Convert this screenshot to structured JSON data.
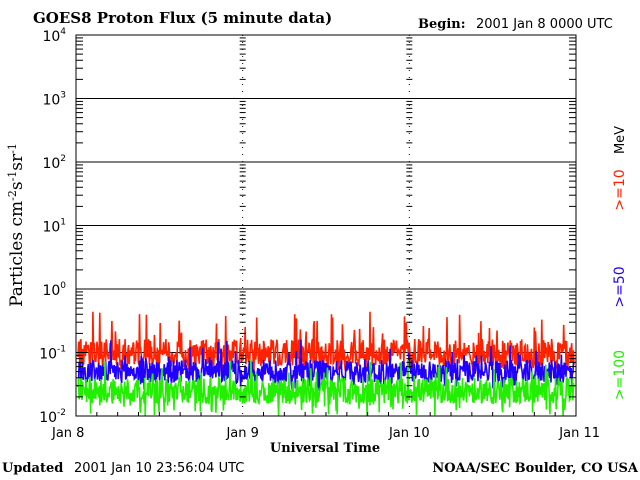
{
  "header": {
    "title": "GOES8 Proton Flux (5 minute data)",
    "begin_label": "Begin:",
    "begin_value": "2001 Jan 8 0000 UTC"
  },
  "footer": {
    "updated_label": "Updated",
    "updated_value": "2001 Jan 10 23:56:04 UTC",
    "credit": "NOAA/SEC Boulder, CO USA"
  },
  "legend": {
    "unit": "MeV",
    "entries": [
      {
        "label": ">=10",
        "color": "#ff2200"
      },
      {
        "label": ">=50",
        "color": "#2200ff"
      },
      {
        "label": ">=100",
        "color": "#22ee00"
      }
    ]
  },
  "chart_data": {
    "type": "line",
    "title": "GOES8 Proton Flux (5 minute data)",
    "xlabel": "Universal Time",
    "ylabel": "Particles cm-2s-1sr-1",
    "y_scale": "log",
    "ylim": [
      0.01,
      10000
    ],
    "x_ticks": [
      "Jan 8",
      "Jan 9",
      "Jan 10",
      "Jan 11"
    ],
    "x_range_days": [
      "2001-01-08",
      "2001-01-11"
    ],
    "y_ticks": [
      {
        "base": "10",
        "exp": "-2"
      },
      {
        "base": "10",
        "exp": "-1"
      },
      {
        "base": "10",
        "exp": "0"
      },
      {
        "base": "10",
        "exp": "1"
      },
      {
        "base": "10",
        "exp": "2"
      },
      {
        "base": "10",
        "exp": "3"
      },
      {
        "base": "10",
        "exp": "4"
      }
    ],
    "grid": true,
    "series": [
      {
        "name": ">=10 MeV",
        "color": "#ff2200",
        "typical": 0.1,
        "min": 0.05,
        "max": 0.45
      },
      {
        "name": ">=50 MeV",
        "color": "#2200ff",
        "typical": 0.05,
        "min": 0.025,
        "max": 0.16
      },
      {
        "name": ">=100 MeV",
        "color": "#22ee00",
        "typical": 0.025,
        "min": 0.01,
        "max": 0.08
      }
    ]
  }
}
